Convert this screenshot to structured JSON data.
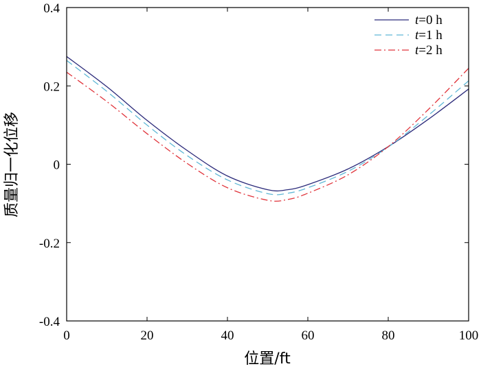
{
  "chart_data": {
    "type": "line",
    "xlabel": "位置/ft",
    "ylabel": "质量归一化位移",
    "xlim": [
      0,
      100
    ],
    "ylim": [
      -0.4,
      0.4
    ],
    "xticks": [
      0,
      20,
      40,
      60,
      80,
      100
    ],
    "yticks": [
      -0.4,
      -0.2,
      0,
      0.2,
      0.4
    ],
    "xtick_labels": [
      "0",
      "20",
      "40",
      "60",
      "80",
      "100"
    ],
    "ytick_labels": [
      "-0.4",
      "-0.2",
      "0",
      "0.2",
      "0.4"
    ],
    "grid": false,
    "legend_position": "top-right",
    "series": [
      {
        "name": "t=0 h",
        "name_var": "t",
        "name_rest": "=0 h",
        "color": "#2b2a7a",
        "style": "solid",
        "points": [
          [
            0,
            0.275
          ],
          [
            10,
            0.198
          ],
          [
            20,
            0.112
          ],
          [
            30,
            0.035
          ],
          [
            40,
            -0.03
          ],
          [
            50,
            -0.065
          ],
          [
            55,
            -0.065
          ],
          [
            60,
            -0.052
          ],
          [
            70,
            -0.012
          ],
          [
            80,
            0.045
          ],
          [
            90,
            0.115
          ],
          [
            100,
            0.192
          ]
        ]
      },
      {
        "name": "t=1 h",
        "name_var": "t",
        "name_rest": "=1 h",
        "color": "#5fb8d6",
        "style": "dashed",
        "points": [
          [
            0,
            0.265
          ],
          [
            10,
            0.186
          ],
          [
            20,
            0.1
          ],
          [
            30,
            0.022
          ],
          [
            40,
            -0.04
          ],
          [
            50,
            -0.075
          ],
          [
            55,
            -0.074
          ],
          [
            60,
            -0.06
          ],
          [
            70,
            -0.018
          ],
          [
            80,
            0.044
          ],
          [
            90,
            0.125
          ],
          [
            100,
            0.213
          ]
        ]
      },
      {
        "name": "t=2 h",
        "name_var": "t",
        "name_rest": "=2 h",
        "color": "#e0333a",
        "style": "dashdot",
        "points": [
          [
            0,
            0.235
          ],
          [
            10,
            0.16
          ],
          [
            20,
            0.078
          ],
          [
            30,
            0.002
          ],
          [
            40,
            -0.06
          ],
          [
            50,
            -0.092
          ],
          [
            55,
            -0.09
          ],
          [
            60,
            -0.074
          ],
          [
            70,
            -0.027
          ],
          [
            80,
            0.045
          ],
          [
            90,
            0.14
          ],
          [
            100,
            0.245
          ]
        ]
      }
    ]
  }
}
